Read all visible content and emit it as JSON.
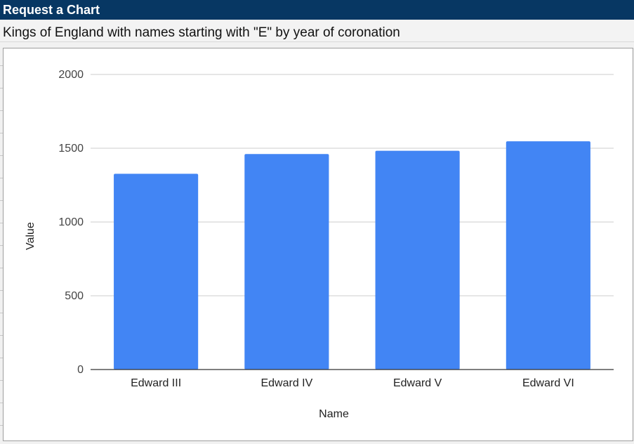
{
  "header": {
    "title": "Request a Chart",
    "subtitle": "Kings of England with names starting with \"E\" by year of coronation"
  },
  "colors": {
    "header_bg": "#073763",
    "bar": "#4285f4",
    "gridline": "#cccccc",
    "axis": "#333333"
  },
  "chart_data": {
    "type": "bar",
    "categories": [
      "Edward III",
      "Edward IV",
      "Edward V",
      "Edward VI"
    ],
    "values": [
      1327,
      1461,
      1483,
      1547
    ],
    "xlabel": "Name",
    "ylabel": "Value",
    "ylim": [
      0,
      2000
    ],
    "yticks": [
      0,
      500,
      1000,
      1500,
      2000
    ],
    "grid": true,
    "legend": "none"
  }
}
